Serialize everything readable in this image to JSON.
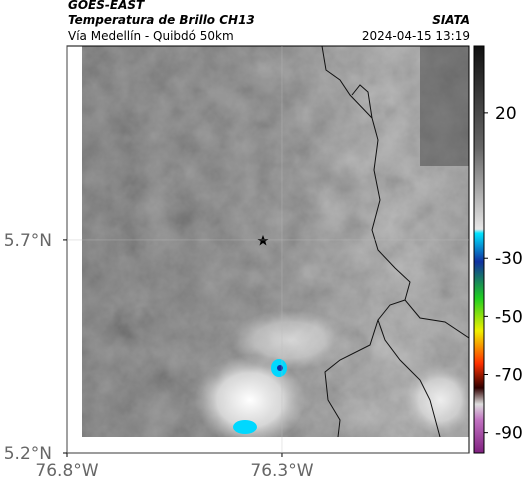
{
  "header": {
    "product": "GOES-EAST",
    "title": "Temperatura de Brillo CH13",
    "subtitle": "Vía Medellín - Quibdó 50km",
    "source": "SIATA",
    "timestamp": "2024-04-15 13:19"
  },
  "map": {
    "xlim": [
      -76.8,
      -75.865
    ],
    "ylim": [
      5.2,
      6.155
    ],
    "xticks": [
      {
        "value": -76.8,
        "label": "76.8°W"
      },
      {
        "value": -76.3,
        "label": "76.3°W"
      }
    ],
    "yticks": [
      {
        "value": 5.7,
        "label": "5.7°N"
      },
      {
        "value": 5.2,
        "label": "5.2°N"
      }
    ],
    "grid": true
  },
  "colorbar": {
    "lim": [
      -97,
      43
    ],
    "ticks": [
      20,
      -30,
      -50,
      -70,
      -90
    ]
  }
}
